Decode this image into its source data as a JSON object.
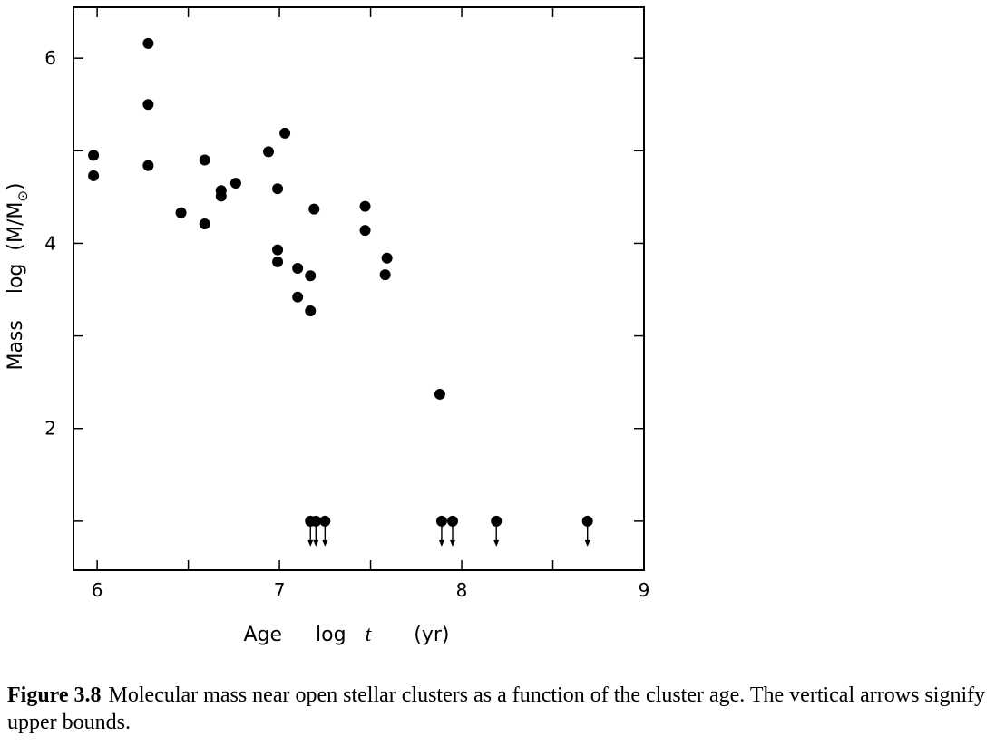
{
  "chart_data": {
    "type": "scatter",
    "xlabel": {
      "prefix": "Age",
      "fn": "log",
      "var": "t",
      "unit": "(yr)"
    },
    "ylabel": {
      "prefix": "Mass",
      "fn": "log",
      "inner": "(M/M",
      "sub": "⊙",
      "close": ")"
    },
    "xlim": [
      5.87,
      9.0
    ],
    "ylim": [
      0.47,
      6.55
    ],
    "xticks": [
      6,
      7,
      8,
      9
    ],
    "xtick_labels": [
      "6",
      "7",
      "8",
      "9"
    ],
    "xminor": [
      6.5,
      7.5,
      8.5
    ],
    "yticks": [
      2,
      4,
      6
    ],
    "ytick_labels": [
      "2",
      "4",
      "6"
    ],
    "yminor": [
      1,
      3,
      5
    ],
    "grid": false,
    "points": [
      {
        "x": 5.98,
        "y": 4.95
      },
      {
        "x": 5.98,
        "y": 4.73
      },
      {
        "x": 6.28,
        "y": 6.16
      },
      {
        "x": 6.28,
        "y": 5.5
      },
      {
        "x": 6.28,
        "y": 4.84
      },
      {
        "x": 6.46,
        "y": 4.33
      },
      {
        "x": 6.59,
        "y": 4.9
      },
      {
        "x": 6.59,
        "y": 4.21
      },
      {
        "x": 6.68,
        "y": 4.57
      },
      {
        "x": 6.68,
        "y": 4.51
      },
      {
        "x": 6.76,
        "y": 4.65
      },
      {
        "x": 6.94,
        "y": 4.99
      },
      {
        "x": 7.03,
        "y": 5.19
      },
      {
        "x": 6.99,
        "y": 4.59
      },
      {
        "x": 6.99,
        "y": 3.93
      },
      {
        "x": 6.99,
        "y": 3.8
      },
      {
        "x": 7.19,
        "y": 4.37
      },
      {
        "x": 7.1,
        "y": 3.73
      },
      {
        "x": 7.17,
        "y": 3.65
      },
      {
        "x": 7.1,
        "y": 3.42
      },
      {
        "x": 7.17,
        "y": 3.27
      },
      {
        "x": 7.47,
        "y": 4.4
      },
      {
        "x": 7.47,
        "y": 4.14
      },
      {
        "x": 7.59,
        "y": 3.84
      },
      {
        "x": 7.58,
        "y": 3.66
      },
      {
        "x": 7.88,
        "y": 2.37
      }
    ],
    "upper_bounds": [
      {
        "x": 7.17,
        "y": 1.0
      },
      {
        "x": 7.2,
        "y": 1.0
      },
      {
        "x": 7.25,
        "y": 1.0
      },
      {
        "x": 7.89,
        "y": 1.0
      },
      {
        "x": 7.95,
        "y": 1.0
      },
      {
        "x": 8.19,
        "y": 1.0
      },
      {
        "x": 8.69,
        "y": 1.0
      }
    ]
  },
  "caption": {
    "figure_number": "Figure 3.8",
    "text": "Molecular mass near open stellar clusters as a function of the cluster age. The vertical arrows signify upper bounds."
  }
}
